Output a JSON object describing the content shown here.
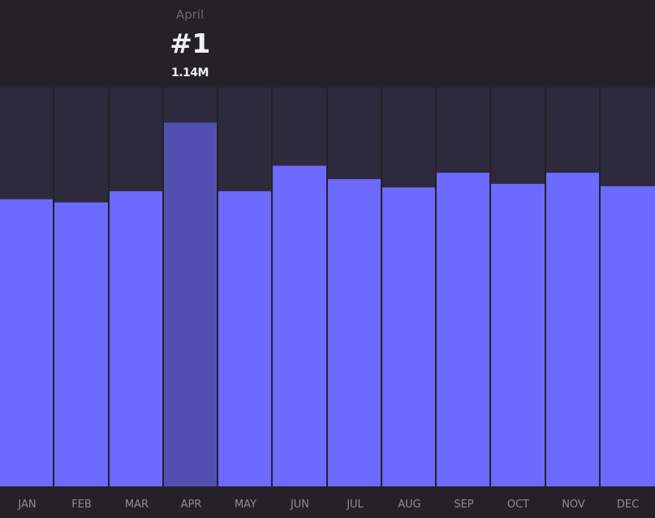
{
  "tooltip": {
    "month": "April",
    "rank": "#1",
    "value": "1.14M"
  },
  "colors": {
    "background": "#242128",
    "column_bg": "#2c2a3c",
    "bar": "#6c6aff",
    "bar_selected": "#5150b1",
    "separator": "#1e1b22"
  },
  "chart_data": {
    "type": "bar",
    "categories": [
      "JAN",
      "FEB",
      "MAR",
      "APR",
      "MAY",
      "JUN",
      "JUL",
      "AUG",
      "SEP",
      "OCT",
      "NOV",
      "DEC"
    ],
    "values": [
      0.9,
      0.89,
      0.925,
      1.14,
      0.925,
      1.005,
      0.963,
      0.937,
      0.983,
      0.948,
      0.983,
      0.941
    ],
    "selected": "APR",
    "ylim": [
      0,
      1.25
    ],
    "grid": false,
    "legend": "none"
  }
}
